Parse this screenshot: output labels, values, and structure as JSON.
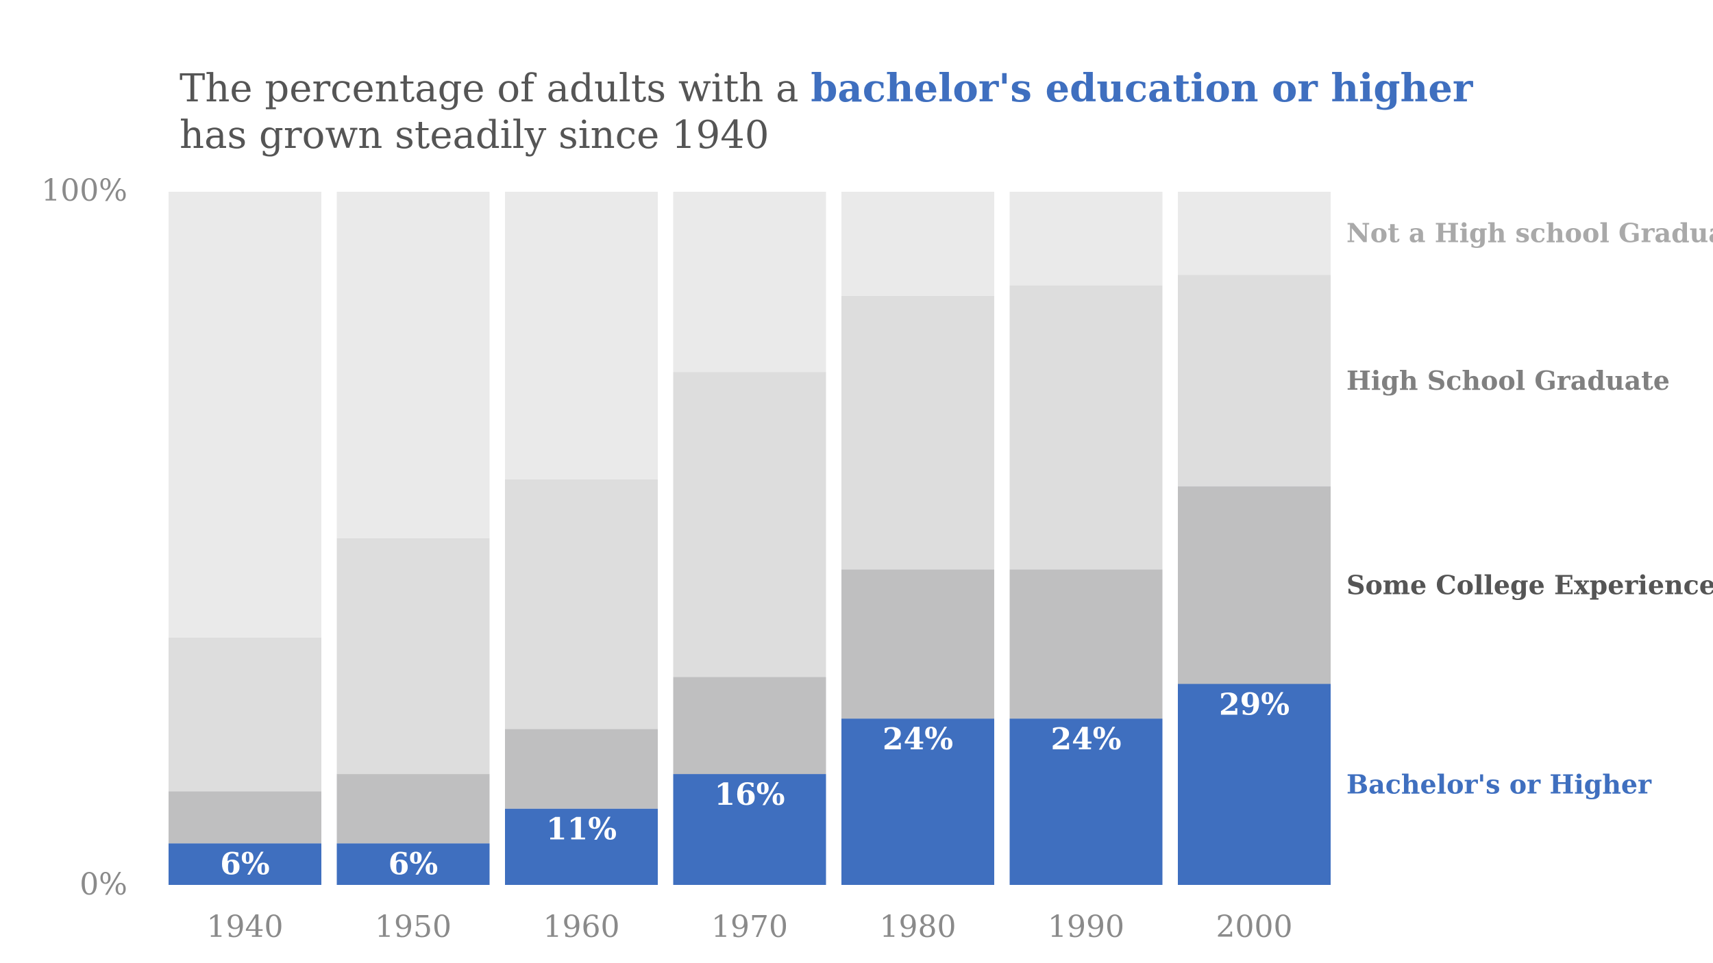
{
  "chart_data": {
    "type": "bar",
    "stacked": true,
    "title": {
      "line1_prefix": "The percentage of adults with a ",
      "line1_highlight": "bachelor's education or higher",
      "line2": "has grown steadily since 1940"
    },
    "ylim": [
      0,
      100
    ],
    "ytick_labels": [
      "100%",
      "0%"
    ],
    "categories": [
      "1940",
      "1950",
      "1960",
      "1970",
      "1980",
      "1990",
      "2000"
    ],
    "series": [
      {
        "name": "Bachelor's or Higher",
        "color": "#3F6FBF",
        "label_color": "#3F6FBF",
        "values": [
          6,
          6,
          11,
          16,
          24,
          24,
          29
        ],
        "data_labels": [
          "6%",
          "6%",
          "11%",
          "16%",
          "24%",
          "24%",
          "29%"
        ]
      },
      {
        "name": "Some College Experience",
        "color": "#BFBFC0",
        "label_color": "#555555",
        "values": [
          7.5,
          10,
          11.5,
          14,
          21.5,
          21.5,
          28.5
        ]
      },
      {
        "name": "High School Graduate",
        "color": "#DDDDDD",
        "label_color": "#808080",
        "values": [
          22.2,
          34,
          36,
          44,
          39.5,
          41,
          30.5
        ]
      },
      {
        "name": "Not a High school Graduate",
        "color": "#EAEAEA",
        "label_color": "#A9A9A9",
        "values": [
          64.3,
          50,
          41.5,
          26,
          15,
          13.5,
          12
        ]
      }
    ]
  }
}
